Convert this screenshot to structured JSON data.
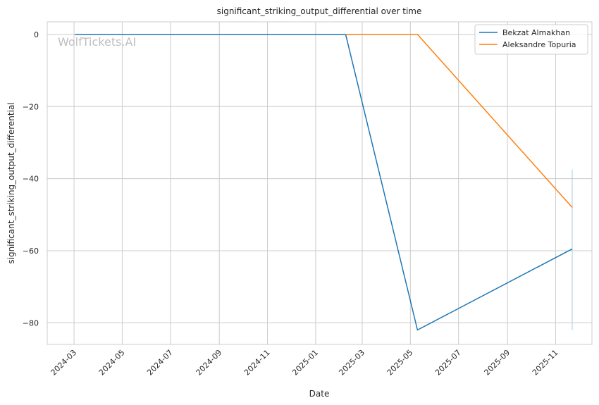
{
  "chart_data": {
    "type": "line",
    "title": "significant_striking_output_differential over time",
    "xlabel": "Date",
    "ylabel": "significant_striking_output_differential",
    "watermark": "WolfTickets.AI",
    "x_ticks": [
      "2024-03",
      "2024-05",
      "2024-07",
      "2024-09",
      "2024-11",
      "2025-01",
      "2025-03",
      "2025-05",
      "2025-07",
      "2025-09",
      "2025-11"
    ],
    "y_ticks": [
      0,
      -20,
      -40,
      -60,
      -80
    ],
    "xlim": [
      "2024-01-27",
      "2025-12-17"
    ],
    "ylim": [
      -86,
      3.5
    ],
    "grid": true,
    "legend_position": "top-right",
    "series": [
      {
        "name": "Bekzat Almakhan",
        "color": "#1f77b4",
        "points": [
          {
            "x": "2024-03-02",
            "y": 0
          },
          {
            "x": "2025-02-08",
            "y": 0
          },
          {
            "x": "2025-05-10",
            "y": -82
          },
          {
            "x": "2025-11-22",
            "y": -59.5
          }
        ]
      },
      {
        "name": "Aleksandre Topuria",
        "color": "#ff7f0e",
        "points": [
          {
            "x": "2025-02-08",
            "y": 0
          },
          {
            "x": "2025-05-10",
            "y": 0
          },
          {
            "x": "2025-11-22",
            "y": -48
          }
        ]
      }
    ],
    "error_bar": {
      "x": "2025-11-22",
      "y_min": -82,
      "y_max": -37.5,
      "color": "#a6cbe3"
    }
  }
}
